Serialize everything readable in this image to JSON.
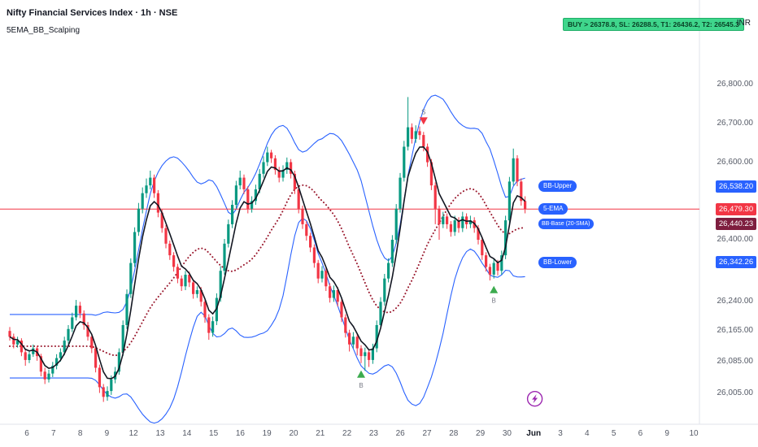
{
  "header": {
    "symbol_title": "Nifty Financial Services Index · 1h · NSE",
    "indicator_name": "5EMA_BB_Scalping",
    "currency": "INR"
  },
  "signal_banner": {
    "text": "BUY > 26378.8, SL: 26288.5, T1: 26436.2, T2: 26545.3",
    "bg": "#3fd68c"
  },
  "price_badges": [
    {
      "name": "bb-upper-badge",
      "label": "26,538.20",
      "value": 26538.2,
      "color": "#2962ff"
    },
    {
      "name": "last-price-badge",
      "label": "26,479.30",
      "value": 26479.3,
      "color": "#f23645"
    },
    {
      "name": "bb-base-badge",
      "label": "26,440.23",
      "value": 26440.23,
      "color": "#7e1e3f"
    },
    {
      "name": "bb-lower-badge",
      "label": "26,342.26",
      "value": 26342.26,
      "color": "#2962ff"
    }
  ],
  "line_labels": [
    {
      "label": "BB-Upper",
      "value": 26538.2,
      "color": "#2962ff",
      "small": false
    },
    {
      "label": "5-EMA",
      "value": 26479.3,
      "color": "#2962ff",
      "small": false
    },
    {
      "label": "BB-Base (20-SMA)",
      "value": 26440.23,
      "color": "#2962ff",
      "small": true
    },
    {
      "label": "BB-Lower",
      "value": 26342.26,
      "color": "#2962ff",
      "small": false
    }
  ],
  "y_axis_ticks": [
    {
      "label": "26,800.00",
      "value": 26800
    },
    {
      "label": "26,700.00",
      "value": 26700
    },
    {
      "label": "26,600.00",
      "value": 26600
    },
    {
      "label": "26,400.00",
      "value": 26400
    },
    {
      "label": "26,240.00",
      "value": 26240
    },
    {
      "label": "26,165.00",
      "value": 26165
    },
    {
      "label": "26,085.00",
      "value": 26085
    },
    {
      "label": "26,005.00",
      "value": 26005
    }
  ],
  "x_axis_ticks": [
    {
      "label": "6"
    },
    {
      "label": "7"
    },
    {
      "label": "8"
    },
    {
      "label": "9"
    },
    {
      "label": "12"
    },
    {
      "label": "13"
    },
    {
      "label": "14"
    },
    {
      "label": "15"
    },
    {
      "label": "16"
    },
    {
      "label": "19"
    },
    {
      "label": "20"
    },
    {
      "label": "21"
    },
    {
      "label": "22"
    },
    {
      "label": "23"
    },
    {
      "label": "26"
    },
    {
      "label": "27"
    },
    {
      "label": "28"
    },
    {
      "label": "29"
    },
    {
      "label": "30"
    },
    {
      "label": "Jun",
      "bold": true
    },
    {
      "label": "3"
    },
    {
      "label": "4"
    },
    {
      "label": "5"
    },
    {
      "label": "6"
    },
    {
      "label": "9"
    },
    {
      "label": "10"
    }
  ],
  "chart_data": {
    "type": "candlestick",
    "title": "Nifty Financial Services Index",
    "timeframe": "1h",
    "exchange": "NSE",
    "indicator": "5EMA_BB_Scalping (5-EMA line, Bollinger Bands with 20-SMA base)",
    "y_axis": {
      "range": [
        25960,
        26840
      ]
    },
    "price_line": 26479.3,
    "colors": {
      "up": "#089981",
      "down": "#f23645",
      "band": "#2962ff",
      "basis": "#9b1b30",
      "ema": "#131722",
      "buy_marker": "#3cab4e",
      "sell_marker": "#f23645",
      "bolt": "#9c27b0",
      "price_line": "#f23645"
    },
    "band_settings": {
      "length": 20,
      "stdev_mult": 1.6,
      "ema_length": 5
    },
    "candles": [
      [
        26165,
        26175,
        26140,
        26150
      ],
      [
        26150,
        26158,
        26120,
        26130
      ],
      [
        26130,
        26150,
        26122,
        26140
      ],
      [
        26140,
        26146,
        26100,
        26110
      ],
      [
        26110,
        26118,
        26075,
        26090
      ],
      [
        26090,
        26115,
        26082,
        26105
      ],
      [
        26105,
        26130,
        26098,
        26120
      ],
      [
        26120,
        26126,
        26088,
        26100
      ],
      [
        26100,
        26106,
        26048,
        26060
      ],
      [
        26060,
        26070,
        26028,
        26040
      ],
      [
        26040,
        26065,
        26032,
        26055
      ],
      [
        26055,
        26085,
        26046,
        26075
      ],
      [
        26075,
        26105,
        26066,
        26095
      ],
      [
        26095,
        26120,
        26086,
        26110
      ],
      [
        26110,
        26150,
        26102,
        26140
      ],
      [
        26140,
        26180,
        26132,
        26170
      ],
      [
        26170,
        26212,
        26162,
        26200
      ],
      [
        26200,
        26245,
        26192,
        26230
      ],
      [
        26230,
        26240,
        26198,
        26210
      ],
      [
        26210,
        26218,
        26168,
        26180
      ],
      [
        26180,
        26188,
        26140,
        26150
      ],
      [
        26150,
        26158,
        26108,
        26120
      ],
      [
        26120,
        26128,
        26058,
        26070
      ],
      [
        26070,
        26078,
        26005,
        26020
      ],
      [
        26020,
        26028,
        25982,
        25995
      ],
      [
        25995,
        26022,
        25985,
        26010
      ],
      [
        26010,
        26050,
        26000,
        26040
      ],
      [
        26040,
        26072,
        26030,
        26060
      ],
      [
        26060,
        26120,
        26052,
        26110
      ],
      [
        26110,
        26192,
        26100,
        26180
      ],
      [
        26180,
        26272,
        26170,
        26260
      ],
      [
        26260,
        26352,
        26250,
        26340
      ],
      [
        26340,
        26432,
        26330,
        26420
      ],
      [
        26420,
        26495,
        26410,
        26480
      ],
      [
        26480,
        26535,
        26468,
        26520
      ],
      [
        26520,
        26558,
        26508,
        26540
      ],
      [
        26540,
        26578,
        26530,
        26560
      ],
      [
        26560,
        26568,
        26508,
        26520
      ],
      [
        26520,
        26528,
        26458,
        26470
      ],
      [
        26470,
        26478,
        26418,
        26430
      ],
      [
        26430,
        26438,
        26378,
        26390
      ],
      [
        26390,
        26398,
        26348,
        26360
      ],
      [
        26360,
        26368,
        26318,
        26330
      ],
      [
        26330,
        26338,
        26288,
        26300
      ],
      [
        26300,
        26308,
        26268,
        26280
      ],
      [
        26280,
        26320,
        26270,
        26310
      ],
      [
        26310,
        26318,
        26278,
        26290
      ],
      [
        26290,
        26298,
        26248,
        26260
      ],
      [
        26260,
        26280,
        26250,
        26270
      ],
      [
        26270,
        26278,
        26228,
        26240
      ],
      [
        26240,
        26248,
        26186,
        26200
      ],
      [
        26200,
        26208,
        26142,
        26160
      ],
      [
        26160,
        26202,
        26150,
        26190
      ],
      [
        26190,
        26262,
        26180,
        26250
      ],
      [
        26250,
        26332,
        26240,
        26320
      ],
      [
        26320,
        26402,
        26310,
        26390
      ],
      [
        26390,
        26452,
        26380,
        26440
      ],
      [
        26440,
        26502,
        26430,
        26490
      ],
      [
        26490,
        26552,
        26480,
        26540
      ],
      [
        26540,
        26578,
        26530,
        26560
      ],
      [
        26560,
        26568,
        26518,
        26530
      ],
      [
        26530,
        26538,
        26468,
        26480
      ],
      [
        26480,
        26512,
        26470,
        26500
      ],
      [
        26500,
        26542,
        26490,
        26530
      ],
      [
        26530,
        26582,
        26520,
        26570
      ],
      [
        26570,
        26615,
        26560,
        26600
      ],
      [
        26600,
        26640,
        26590,
        26625
      ],
      [
        26625,
        26632,
        26598,
        26610
      ],
      [
        26610,
        26618,
        26568,
        26580
      ],
      [
        26580,
        26588,
        26548,
        26560
      ],
      [
        26560,
        26592,
        26550,
        26580
      ],
      [
        26580,
        26612,
        26570,
        26600
      ],
      [
        26600,
        26608,
        26558,
        26570
      ],
      [
        26570,
        26578,
        26518,
        26530
      ],
      [
        26530,
        26538,
        26468,
        26480
      ],
      [
        26480,
        26488,
        26428,
        26440
      ],
      [
        26440,
        26448,
        26398,
        26410
      ],
      [
        26410,
        26418,
        26368,
        26380
      ],
      [
        26380,
        26388,
        26328,
        26340
      ],
      [
        26340,
        26348,
        26288,
        26300
      ],
      [
        26300,
        26332,
        26290,
        26320
      ],
      [
        26320,
        26328,
        26268,
        26280
      ],
      [
        26280,
        26288,
        26238,
        26250
      ],
      [
        26250,
        26282,
        26240,
        26270
      ],
      [
        26270,
        26278,
        26228,
        26240
      ],
      [
        26240,
        26248,
        26188,
        26200
      ],
      [
        26200,
        26208,
        26148,
        26160
      ],
      [
        26160,
        26168,
        26112,
        26130
      ],
      [
        26130,
        26162,
        26120,
        26150
      ],
      [
        26150,
        26158,
        26102,
        26120
      ],
      [
        26120,
        26128,
        26082,
        26100
      ],
      [
        26100,
        26122,
        26062,
        26110
      ],
      [
        26110,
        26118,
        26072,
        26090
      ],
      [
        26090,
        26132,
        26080,
        26120
      ],
      [
        26120,
        26192,
        26110,
        26180
      ],
      [
        26180,
        26252,
        26170,
        26240
      ],
      [
        26240,
        26312,
        26230,
        26300
      ],
      [
        26300,
        26352,
        26290,
        26340
      ],
      [
        26340,
        26412,
        26330,
        26400
      ],
      [
        26400,
        26492,
        26390,
        26480
      ],
      [
        26480,
        26572,
        26470,
        26560
      ],
      [
        26560,
        26655,
        26550,
        26640
      ],
      [
        26640,
        26768,
        26630,
        26690
      ],
      [
        26690,
        26700,
        26648,
        26660
      ],
      [
        26660,
        26695,
        26650,
        26680
      ],
      [
        26680,
        26692,
        26658,
        26670
      ],
      [
        26670,
        26678,
        26628,
        26640
      ],
      [
        26640,
        26648,
        26588,
        26600
      ],
      [
        26600,
        26608,
        26528,
        26540
      ],
      [
        26540,
        26548,
        26440,
        26480
      ],
      [
        26480,
        26488,
        26400,
        26440
      ],
      [
        26440,
        26472,
        26430,
        26460
      ],
      [
        26460,
        26468,
        26428,
        26440
      ],
      [
        26440,
        26448,
        26408,
        26420
      ],
      [
        26420,
        26462,
        26410,
        26450
      ],
      [
        26450,
        26458,
        26418,
        26430
      ],
      [
        26430,
        26472,
        26420,
        26460
      ],
      [
        26460,
        26468,
        26428,
        26440
      ],
      [
        26440,
        26462,
        26430,
        26450
      ],
      [
        26450,
        26458,
        26418,
        26430
      ],
      [
        26430,
        26438,
        26388,
        26400
      ],
      [
        26400,
        26408,
        26348,
        26360
      ],
      [
        26360,
        26368,
        26318,
        26330
      ],
      [
        26330,
        26338,
        26295,
        26310
      ],
      [
        26310,
        26352,
        26300,
        26340
      ],
      [
        26340,
        26348,
        26308,
        26320
      ],
      [
        26320,
        26372,
        26310,
        26360
      ],
      [
        26360,
        26462,
        26350,
        26450
      ],
      [
        26450,
        26562,
        26440,
        26550
      ],
      [
        26550,
        26635,
        26540,
        26610
      ],
      [
        26610,
        26618,
        26538,
        26550
      ],
      [
        26550,
        26558,
        26488,
        26500
      ],
      [
        26500,
        26512,
        26468,
        26479.3
      ]
    ],
    "markers": [
      {
        "type": "buy",
        "index": 90,
        "label": "B"
      },
      {
        "type": "sell",
        "index": 106,
        "label": "S"
      },
      {
        "type": "buy",
        "index": 124,
        "label": "B"
      },
      {
        "type": "bolt",
        "index": 134.5,
        "price": 25990
      }
    ]
  }
}
